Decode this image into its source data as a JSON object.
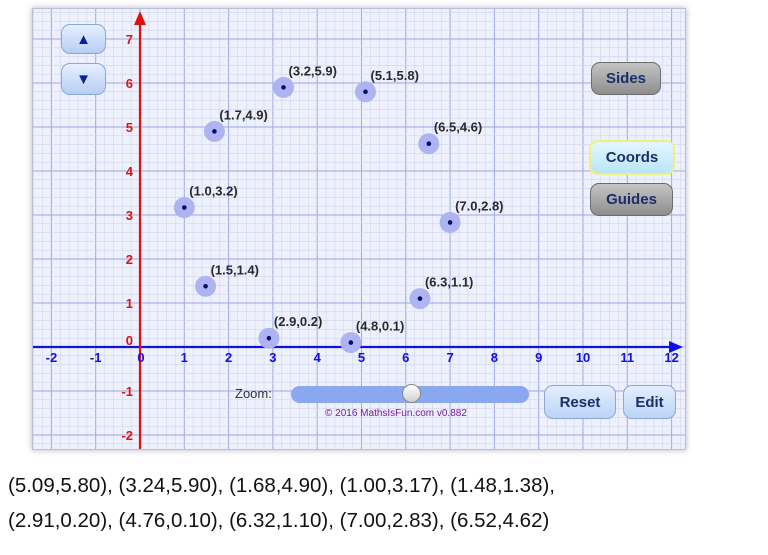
{
  "toolbar": {
    "up_label": "▲",
    "down_label": "▼",
    "sides_label": "Sides",
    "coords_label": "Coords",
    "guides_label": "Guides",
    "reset_label": "Reset",
    "edit_label": "Edit",
    "zoom_label": "Zoom:",
    "zoom_value": 0.5
  },
  "copyright": "© 2016 MathsIsFun.com v0.882",
  "graph": {
    "x_ticks": [
      "-2",
      "-1",
      "0",
      "1",
      "2",
      "3",
      "4",
      "5",
      "6",
      "7",
      "8",
      "9",
      "10",
      "11",
      "12"
    ],
    "y_ticks": [
      "-2",
      "-1",
      "0",
      "1",
      "2",
      "3",
      "4",
      "5",
      "6",
      "7"
    ],
    "points": [
      {
        "label": "(5.1,5.8)",
        "x": 5.09,
        "y": 5.8
      },
      {
        "label": "(3.2,5.9)",
        "x": 3.24,
        "y": 5.9
      },
      {
        "label": "(1.7,4.9)",
        "x": 1.68,
        "y": 4.9
      },
      {
        "label": "(1.0,3.2)",
        "x": 1.0,
        "y": 3.17
      },
      {
        "label": "(1.5,1.4)",
        "x": 1.48,
        "y": 1.38
      },
      {
        "label": "(2.9,0.2)",
        "x": 2.91,
        "y": 0.2
      },
      {
        "label": "(4.8,0.1)",
        "x": 4.76,
        "y": 0.1
      },
      {
        "label": "(6.3,1.1)",
        "x": 6.32,
        "y": 1.1
      },
      {
        "label": "(7.0,2.8)",
        "x": 7.0,
        "y": 2.83
      },
      {
        "label": "(6.5,4.6)",
        "x": 6.52,
        "y": 4.62
      }
    ]
  },
  "caption": {
    "line1": "(5.09,5.80), (3.24,5.90), (1.68,4.90), (1.00,3.17), (1.48,1.38),",
    "line2": "(2.91,0.20), (4.76,0.10), (6.32,1.10), (7.00,2.83), (6.52,4.62)"
  },
  "colors": {
    "x_axis": "#1010e8",
    "y_axis": "#e01010",
    "point_halo": "#aeb4f2",
    "point_dot": "#0a0a70",
    "grid_major": "#9fa9e6",
    "grid_minor": "#cfd5f3"
  }
}
